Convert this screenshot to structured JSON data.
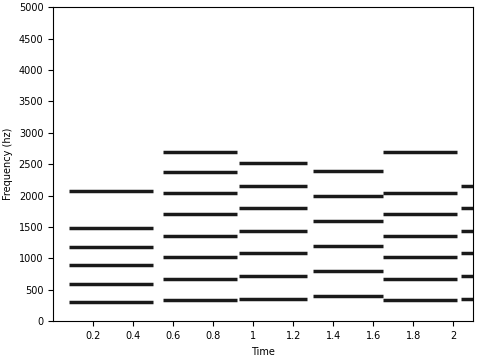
{
  "chart_data": {
    "type": "spectrogram",
    "x_label": "Time",
    "y_label": "Frequency (hz)",
    "xlim": [
      0,
      2.1
    ],
    "xticks": [
      0.2,
      0.4,
      0.6,
      0.8,
      1,
      1.2,
      1.4,
      1.6,
      1.8,
      2
    ],
    "ylim": [
      0,
      5000
    ],
    "yticks": [
      0,
      500,
      1000,
      1500,
      2000,
      2500,
      3000,
      3500,
      4000,
      4500,
      5000
    ],
    "color": "#1a1a1a",
    "notes": [
      {
        "start": 0.08,
        "end": 0.5,
        "frequencies": [
          310,
          600,
          890,
          1180,
          1480,
          2080
        ]
      },
      {
        "start": 0.55,
        "end": 0.92,
        "frequencies": [
          340,
          680,
          1020,
          1360,
          1700,
          2040,
          2380,
          2700
        ]
      },
      {
        "start": 0.93,
        "end": 1.27,
        "frequencies": [
          360,
          720,
          1080,
          1440,
          1800,
          2160,
          2520
        ]
      },
      {
        "start": 1.3,
        "end": 1.65,
        "frequencies": [
          400,
          800,
          1200,
          1600,
          2000,
          2400
        ]
      },
      {
        "start": 1.65,
        "end": 2.02,
        "frequencies": [
          340,
          680,
          1020,
          1360,
          1700,
          2040,
          2700
        ]
      },
      {
        "start": 2.04,
        "end": 2.1,
        "frequencies": [
          360,
          720,
          1080,
          1440,
          1800,
          2160
        ]
      }
    ]
  }
}
